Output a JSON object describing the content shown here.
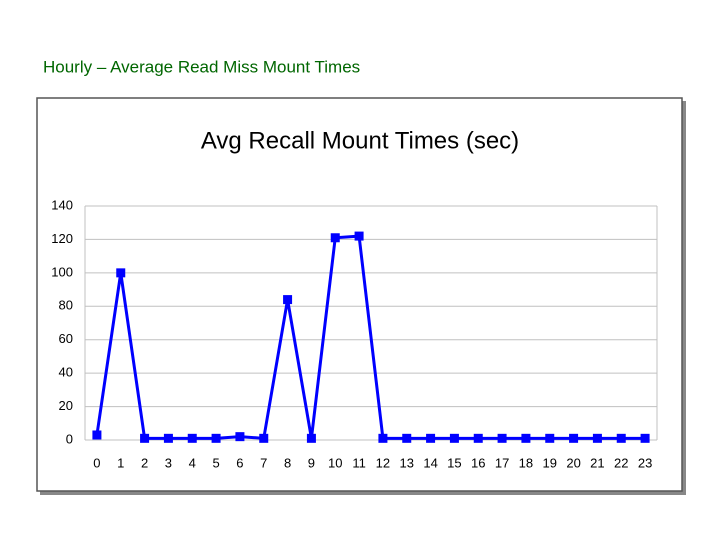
{
  "page_title": "Hourly – Average Read Miss Mount Times",
  "chart_data": {
    "type": "line",
    "title": "Avg Recall Mount Times (sec)",
    "categories": [
      "0",
      "1",
      "2",
      "3",
      "4",
      "5",
      "6",
      "7",
      "8",
      "9",
      "10",
      "11",
      "12",
      "13",
      "14",
      "15",
      "16",
      "17",
      "18",
      "19",
      "20",
      "21",
      "22",
      "23"
    ],
    "values": [
      3,
      100,
      1,
      1,
      1,
      1,
      2,
      1,
      84,
      1,
      121,
      122,
      1,
      1,
      1,
      1,
      1,
      1,
      1,
      1,
      1,
      1,
      1,
      1
    ],
    "color": "#0000ff",
    "ylim": [
      0,
      140
    ],
    "yticks": [
      0,
      20,
      40,
      60,
      80,
      100,
      120,
      140
    ],
    "grid": true
  }
}
